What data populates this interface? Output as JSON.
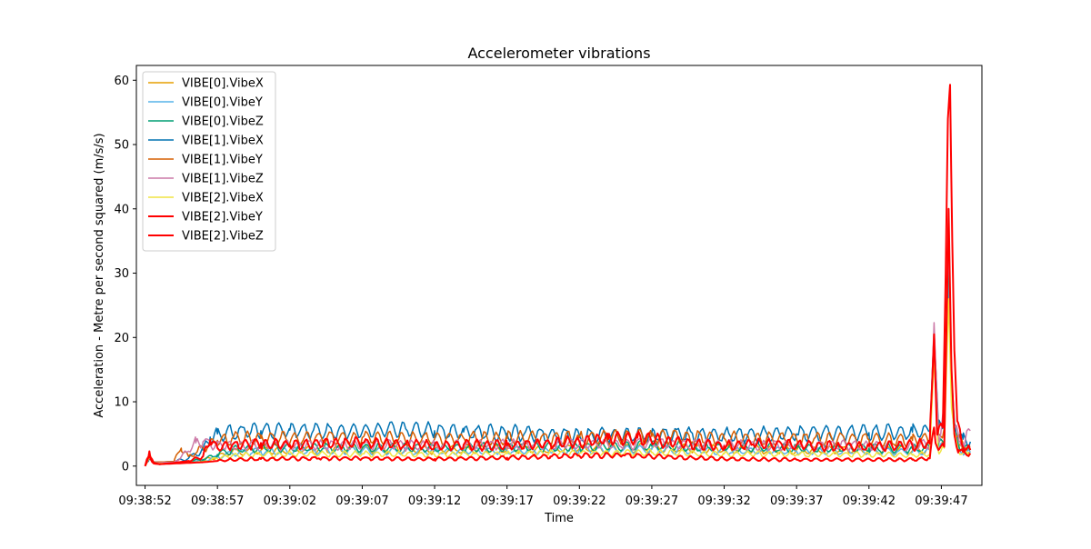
{
  "chart_data": {
    "type": "line",
    "title": "Accelerometer vibrations",
    "xlabel": "Time",
    "ylabel": "Acceleration - Metre per second squared  (m/s/s)",
    "xlim_seconds": [
      -0.6,
      57.8
    ],
    "ylim": [
      -3,
      62.3
    ],
    "x_ticks": [
      "09:38:52",
      "09:38:57",
      "09:39:02",
      "09:39:07",
      "09:39:12",
      "09:39:17",
      "09:39:22",
      "09:39:27",
      "09:39:32",
      "09:39:37",
      "09:39:42",
      "09:39:47"
    ],
    "y_ticks": [
      0,
      10,
      20,
      30,
      40,
      50,
      60
    ],
    "grid": false,
    "legend_position": "upper-left",
    "series": [
      {
        "name": "VIBE[0].VibeX",
        "color": "#E69F00",
        "points": [
          [
            0,
            0
          ],
          [
            0.3,
            1.6
          ],
          [
            0.6,
            0.6
          ],
          [
            2,
            0.5
          ],
          [
            3,
            0.7
          ],
          [
            4,
            0.9
          ],
          [
            5,
            1.5
          ],
          [
            6,
            2.2
          ],
          [
            8,
            2.5
          ],
          [
            15,
            2.6
          ],
          [
            20,
            2.5
          ],
          [
            25,
            2.6
          ],
          [
            30,
            2.7
          ],
          [
            35,
            2.8
          ],
          [
            40,
            2.6
          ],
          [
            45,
            2.5
          ],
          [
            50,
            2.5
          ],
          [
            53,
            2.4
          ],
          [
            54.2,
            2.6
          ],
          [
            54.5,
            20.5
          ],
          [
            54.8,
            3
          ],
          [
            55.2,
            3.5
          ],
          [
            55.5,
            37
          ],
          [
            55.7,
            13
          ],
          [
            55.9,
            6
          ],
          [
            56.2,
            3
          ],
          [
            56.5,
            2.5
          ],
          [
            57,
            2.3
          ]
        ]
      },
      {
        "name": "VIBE[0].VibeY",
        "color": "#56B4E9",
        "points": [
          [
            0,
            0
          ],
          [
            0.3,
            1.4
          ],
          [
            0.6,
            0.5
          ],
          [
            2,
            0.5
          ],
          [
            4,
            0.9
          ],
          [
            5,
            1.4
          ],
          [
            6,
            2
          ],
          [
            8,
            2.3
          ],
          [
            15,
            2.4
          ],
          [
            20,
            2.3
          ],
          [
            25,
            2.4
          ],
          [
            30,
            2.5
          ],
          [
            35,
            2.6
          ],
          [
            40,
            2.4
          ],
          [
            45,
            2.3
          ],
          [
            50,
            2.3
          ],
          [
            53,
            2.2
          ],
          [
            54.2,
            2.4
          ],
          [
            54.5,
            18
          ],
          [
            54.8,
            2.8
          ],
          [
            55.2,
            3
          ],
          [
            55.5,
            30
          ],
          [
            55.7,
            10
          ],
          [
            55.9,
            5
          ],
          [
            56.2,
            2.8
          ],
          [
            56.5,
            2.3
          ],
          [
            57,
            2.1
          ]
        ]
      },
      {
        "name": "VIBE[0].VibeZ",
        "color": "#009E73",
        "points": [
          [
            0,
            0
          ],
          [
            0.3,
            1.5
          ],
          [
            0.6,
            0.6
          ],
          [
            2,
            0.5
          ],
          [
            4,
            1
          ],
          [
            5,
            1.8
          ],
          [
            6,
            2.5
          ],
          [
            8,
            2.8
          ],
          [
            15,
            2.9
          ],
          [
            20,
            2.8
          ],
          [
            25,
            2.9
          ],
          [
            30,
            3
          ],
          [
            35,
            3.1
          ],
          [
            40,
            2.9
          ],
          [
            45,
            2.8
          ],
          [
            50,
            2.8
          ],
          [
            53,
            2.7
          ],
          [
            54.2,
            2.9
          ],
          [
            54.5,
            19
          ],
          [
            54.8,
            3.2
          ],
          [
            55.2,
            3.6
          ],
          [
            55.5,
            33
          ],
          [
            55.7,
            12
          ],
          [
            55.9,
            6
          ],
          [
            56.2,
            3.2
          ],
          [
            56.5,
            2.8
          ],
          [
            57,
            2.5
          ]
        ]
      },
      {
        "name": "VIBE[1].VibeX",
        "color": "#0072B2",
        "points": [
          [
            0,
            0
          ],
          [
            0.3,
            1.3
          ],
          [
            0.6,
            0.6
          ],
          [
            2,
            0.7
          ],
          [
            3,
            1.2
          ],
          [
            4,
            2.5
          ],
          [
            4.5,
            4.5
          ],
          [
            5,
            5
          ],
          [
            6,
            5.2
          ],
          [
            8,
            5.5
          ],
          [
            10,
            5.6
          ],
          [
            15,
            5.3
          ],
          [
            18,
            5.8
          ],
          [
            20,
            5.5
          ],
          [
            22,
            5.3
          ],
          [
            25,
            5.1
          ],
          [
            30,
            4.8
          ],
          [
            35,
            4.9
          ],
          [
            40,
            4.8
          ],
          [
            45,
            5
          ],
          [
            50,
            5.2
          ],
          [
            53,
            5.3
          ],
          [
            54.2,
            5.4
          ],
          [
            54.5,
            21
          ],
          [
            54.8,
            6
          ],
          [
            55.2,
            7
          ],
          [
            55.5,
            36
          ],
          [
            55.7,
            14
          ],
          [
            55.9,
            7
          ],
          [
            56.2,
            4.8
          ],
          [
            56.5,
            4.2
          ],
          [
            57,
            3.8
          ]
        ]
      },
      {
        "name": "VIBE[1].VibeY",
        "color": "#D55E00",
        "points": [
          [
            0,
            0
          ],
          [
            0.3,
            1.4
          ],
          [
            0.6,
            0.6
          ],
          [
            2,
            0.7
          ],
          [
            2.5,
            2.8
          ],
          [
            3,
            1.5
          ],
          [
            4,
            2.8
          ],
          [
            5,
            4
          ],
          [
            6,
            4.3
          ],
          [
            8,
            4.3
          ],
          [
            15,
            4.4
          ],
          [
            20,
            4.2
          ],
          [
            25,
            4.3
          ],
          [
            30,
            4.4
          ],
          [
            35,
            4.6
          ],
          [
            40,
            4.3
          ],
          [
            45,
            4.2
          ],
          [
            50,
            4.1
          ],
          [
            53,
            4
          ],
          [
            54.2,
            4.3
          ],
          [
            54.5,
            21
          ],
          [
            54.8,
            5
          ],
          [
            55.2,
            6
          ],
          [
            55.5,
            36
          ],
          [
            55.7,
            13
          ],
          [
            55.9,
            6
          ],
          [
            56.2,
            4
          ],
          [
            56.5,
            3.5
          ],
          [
            57,
            3
          ]
        ]
      },
      {
        "name": "VIBE[1].VibeZ",
        "color": "#CC79A7",
        "points": [
          [
            0,
            0
          ],
          [
            0.3,
            1.5
          ],
          [
            0.6,
            0.5
          ],
          [
            2,
            0.6
          ],
          [
            3,
            2.3
          ],
          [
            3.5,
            3.6
          ],
          [
            4,
            3.8
          ],
          [
            5,
            3.3
          ],
          [
            6,
            3.2
          ],
          [
            8,
            3.2
          ],
          [
            15,
            3.3
          ],
          [
            20,
            3.2
          ],
          [
            25,
            3.3
          ],
          [
            30,
            3.4
          ],
          [
            35,
            3.5
          ],
          [
            40,
            3.3
          ],
          [
            45,
            3.2
          ],
          [
            50,
            3.2
          ],
          [
            53,
            3.1
          ],
          [
            54.2,
            3.3
          ],
          [
            54.5,
            22.3
          ],
          [
            54.8,
            4
          ],
          [
            55.2,
            9.5
          ],
          [
            55.5,
            35
          ],
          [
            55.7,
            12
          ],
          [
            55.9,
            6
          ],
          [
            56.2,
            4
          ],
          [
            56.5,
            3.5
          ],
          [
            57,
            5.5
          ]
        ]
      },
      {
        "name": "VIBE[2].VibeX",
        "color": "#F0E442",
        "points": [
          [
            0,
            0
          ],
          [
            0.3,
            1.2
          ],
          [
            0.6,
            0.4
          ],
          [
            2,
            0.4
          ],
          [
            4,
            0.7
          ],
          [
            5,
            1.2
          ],
          [
            6,
            1.6
          ],
          [
            8,
            1.8
          ],
          [
            15,
            1.9
          ],
          [
            20,
            1.8
          ],
          [
            25,
            1.9
          ],
          [
            30,
            2
          ],
          [
            35,
            2.1
          ],
          [
            40,
            1.9
          ],
          [
            45,
            1.8
          ],
          [
            50,
            1.8
          ],
          [
            53,
            1.7
          ],
          [
            54.2,
            1.9
          ],
          [
            54.5,
            17
          ],
          [
            54.8,
            2.2
          ],
          [
            55.2,
            2.8
          ],
          [
            55.5,
            26
          ],
          [
            55.7,
            9
          ],
          [
            55.9,
            4.5
          ],
          [
            56.2,
            2.3
          ],
          [
            56.5,
            2
          ],
          [
            57,
            1.8
          ]
        ]
      },
      {
        "name": "VIBE[2].VibeY",
        "color": "#FF0000",
        "points": [
          [
            0,
            0
          ],
          [
            0.3,
            1.6
          ],
          [
            0.6,
            0.4
          ],
          [
            1,
            0.3
          ],
          [
            2,
            0.4
          ],
          [
            3,
            0.5
          ],
          [
            4,
            0.6
          ],
          [
            5,
            0.8
          ],
          [
            6,
            1
          ],
          [
            8,
            1.1
          ],
          [
            12,
            1.2
          ],
          [
            15,
            1.2
          ],
          [
            18,
            1.1
          ],
          [
            20,
            1.1
          ],
          [
            25,
            1.3
          ],
          [
            28,
            1.5
          ],
          [
            30,
            1.6
          ],
          [
            33,
            1.7
          ],
          [
            36,
            1.4
          ],
          [
            40,
            1.1
          ],
          [
            45,
            1
          ],
          [
            48,
            1
          ],
          [
            52,
            1
          ],
          [
            53,
            1
          ],
          [
            54.2,
            1.2
          ],
          [
            54.5,
            6
          ],
          [
            54.8,
            2.5
          ],
          [
            55.2,
            3
          ],
          [
            55.4,
            27
          ],
          [
            55.5,
            40
          ],
          [
            55.7,
            15
          ],
          [
            55.9,
            5
          ],
          [
            56.2,
            2.5
          ],
          [
            56.5,
            2.2
          ],
          [
            57,
            2
          ]
        ]
      },
      {
        "name": "VIBE[2].VibeZ",
        "color": "#FF0000",
        "points": [
          [
            0,
            0
          ],
          [
            0.3,
            2.3
          ],
          [
            0.6,
            0.5
          ],
          [
            1,
            0.3
          ],
          [
            2,
            0.5
          ],
          [
            3,
            0.8
          ],
          [
            4,
            1.5
          ],
          [
            4.5,
            4
          ],
          [
            5,
            2.8
          ],
          [
            6,
            3.2
          ],
          [
            8,
            3.6
          ],
          [
            10,
            3.3
          ],
          [
            12,
            3.5
          ],
          [
            15,
            3.6
          ],
          [
            18,
            3.4
          ],
          [
            20,
            3.1
          ],
          [
            22,
            3.3
          ],
          [
            25,
            3.2
          ],
          [
            28,
            3.5
          ],
          [
            30,
            3.8
          ],
          [
            32,
            4.2
          ],
          [
            34,
            4.4
          ],
          [
            36,
            3.8
          ],
          [
            38,
            3.4
          ],
          [
            40,
            3.1
          ],
          [
            42,
            3.4
          ],
          [
            44,
            3.3
          ],
          [
            46,
            3.2
          ],
          [
            48,
            3
          ],
          [
            50,
            3.1
          ],
          [
            52,
            3.2
          ],
          [
            53,
            3.2
          ],
          [
            54.2,
            3.5
          ],
          [
            54.5,
            20.5
          ],
          [
            54.7,
            5
          ],
          [
            55.1,
            6
          ],
          [
            55.3,
            30
          ],
          [
            55.45,
            54
          ],
          [
            55.6,
            59.3
          ],
          [
            55.75,
            35
          ],
          [
            55.9,
            18
          ],
          [
            56.1,
            7
          ],
          [
            56.4,
            3.5
          ],
          [
            57,
            2.5
          ]
        ]
      }
    ]
  }
}
